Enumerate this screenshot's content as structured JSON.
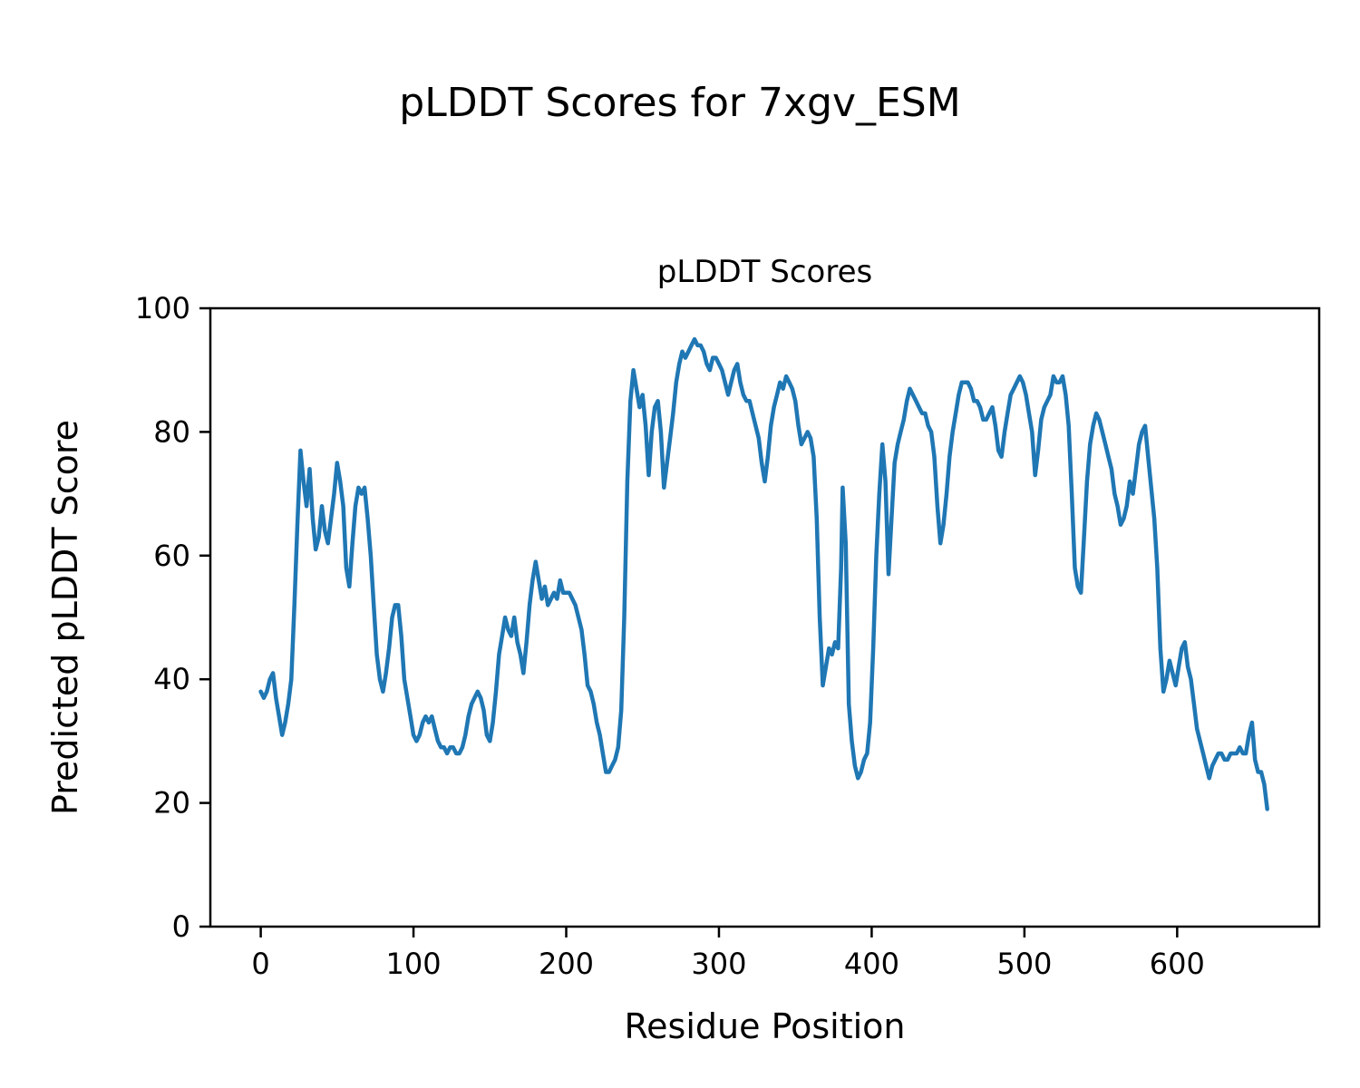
{
  "chart_data": {
    "type": "line",
    "figure_title": "pLDDT Scores for 7xgv_ESM",
    "title": "pLDDT Scores",
    "xlabel": "Residue Position",
    "ylabel": "Predicted pLDDT Score",
    "xlim": [
      -33,
      693
    ],
    "ylim": [
      0,
      100
    ],
    "xticks": [
      0,
      100,
      200,
      300,
      400,
      500,
      600
    ],
    "yticks": [
      0,
      20,
      40,
      60,
      80,
      100
    ],
    "grid": false,
    "legend": "none",
    "series": [
      {
        "name": "pLDDT",
        "color": "#1f77b4",
        "points": [
          [
            0,
            38
          ],
          [
            2,
            37
          ],
          [
            4,
            38
          ],
          [
            6,
            40
          ],
          [
            8,
            41
          ],
          [
            10,
            37
          ],
          [
            12,
            34
          ],
          [
            14,
            31
          ],
          [
            16,
            33
          ],
          [
            18,
            36
          ],
          [
            20,
            40
          ],
          [
            22,
            52
          ],
          [
            24,
            65
          ],
          [
            26,
            77
          ],
          [
            28,
            72
          ],
          [
            30,
            68
          ],
          [
            32,
            74
          ],
          [
            34,
            66
          ],
          [
            36,
            61
          ],
          [
            38,
            63
          ],
          [
            40,
            68
          ],
          [
            42,
            64
          ],
          [
            44,
            62
          ],
          [
            46,
            66
          ],
          [
            48,
            70
          ],
          [
            50,
            75
          ],
          [
            52,
            72
          ],
          [
            54,
            68
          ],
          [
            56,
            58
          ],
          [
            58,
            55
          ],
          [
            60,
            62
          ],
          [
            62,
            68
          ],
          [
            64,
            71
          ],
          [
            66,
            70
          ],
          [
            68,
            71
          ],
          [
            70,
            66
          ],
          [
            72,
            60
          ],
          [
            74,
            52
          ],
          [
            76,
            44
          ],
          [
            78,
            40
          ],
          [
            80,
            38
          ],
          [
            82,
            41
          ],
          [
            84,
            45
          ],
          [
            86,
            50
          ],
          [
            88,
            52
          ],
          [
            90,
            52
          ],
          [
            92,
            47
          ],
          [
            94,
            40
          ],
          [
            96,
            37
          ],
          [
            98,
            34
          ],
          [
            100,
            31
          ],
          [
            102,
            30
          ],
          [
            104,
            31
          ],
          [
            106,
            33
          ],
          [
            108,
            34
          ],
          [
            110,
            33
          ],
          [
            112,
            34
          ],
          [
            114,
            32
          ],
          [
            116,
            30
          ],
          [
            118,
            29
          ],
          [
            120,
            29
          ],
          [
            122,
            28
          ],
          [
            124,
            29
          ],
          [
            126,
            29
          ],
          [
            128,
            28
          ],
          [
            130,
            28
          ],
          [
            132,
            29
          ],
          [
            134,
            31
          ],
          [
            136,
            34
          ],
          [
            138,
            36
          ],
          [
            140,
            37
          ],
          [
            142,
            38
          ],
          [
            144,
            37
          ],
          [
            146,
            35
          ],
          [
            148,
            31
          ],
          [
            150,
            30
          ],
          [
            152,
            33
          ],
          [
            154,
            38
          ],
          [
            156,
            44
          ],
          [
            158,
            47
          ],
          [
            160,
            50
          ],
          [
            162,
            48
          ],
          [
            164,
            47
          ],
          [
            166,
            50
          ],
          [
            168,
            46
          ],
          [
            170,
            44
          ],
          [
            172,
            41
          ],
          [
            174,
            46
          ],
          [
            176,
            52
          ],
          [
            178,
            56
          ],
          [
            180,
            59
          ],
          [
            182,
            56
          ],
          [
            184,
            53
          ],
          [
            186,
            55
          ],
          [
            188,
            52
          ],
          [
            190,
            53
          ],
          [
            192,
            54
          ],
          [
            194,
            53
          ],
          [
            196,
            56
          ],
          [
            198,
            54
          ],
          [
            200,
            54
          ],
          [
            202,
            54
          ],
          [
            204,
            53
          ],
          [
            206,
            52
          ],
          [
            208,
            50
          ],
          [
            210,
            48
          ],
          [
            212,
            44
          ],
          [
            214,
            39
          ],
          [
            216,
            38
          ],
          [
            218,
            36
          ],
          [
            220,
            33
          ],
          [
            222,
            31
          ],
          [
            224,
            28
          ],
          [
            226,
            25
          ],
          [
            228,
            25
          ],
          [
            230,
            26
          ],
          [
            232,
            27
          ],
          [
            234,
            29
          ],
          [
            236,
            35
          ],
          [
            238,
            50
          ],
          [
            240,
            72
          ],
          [
            242,
            85
          ],
          [
            244,
            90
          ],
          [
            246,
            87
          ],
          [
            248,
            84
          ],
          [
            250,
            86
          ],
          [
            252,
            81
          ],
          [
            254,
            73
          ],
          [
            256,
            80
          ],
          [
            258,
            84
          ],
          [
            260,
            85
          ],
          [
            262,
            80
          ],
          [
            264,
            71
          ],
          [
            266,
            75
          ],
          [
            268,
            79
          ],
          [
            270,
            83
          ],
          [
            272,
            88
          ],
          [
            274,
            91
          ],
          [
            276,
            93
          ],
          [
            278,
            92
          ],
          [
            280,
            93
          ],
          [
            282,
            94
          ],
          [
            284,
            95
          ],
          [
            286,
            94
          ],
          [
            288,
            94
          ],
          [
            290,
            93
          ],
          [
            292,
            91
          ],
          [
            294,
            90
          ],
          [
            296,
            92
          ],
          [
            298,
            92
          ],
          [
            300,
            91
          ],
          [
            302,
            90
          ],
          [
            304,
            88
          ],
          [
            306,
            86
          ],
          [
            308,
            88
          ],
          [
            310,
            90
          ],
          [
            312,
            91
          ],
          [
            314,
            88
          ],
          [
            316,
            86
          ],
          [
            318,
            85
          ],
          [
            320,
            85
          ],
          [
            322,
            83
          ],
          [
            324,
            81
          ],
          [
            326,
            79
          ],
          [
            328,
            75
          ],
          [
            330,
            72
          ],
          [
            332,
            76
          ],
          [
            334,
            81
          ],
          [
            336,
            84
          ],
          [
            338,
            86
          ],
          [
            340,
            88
          ],
          [
            342,
            87
          ],
          [
            344,
            89
          ],
          [
            346,
            88
          ],
          [
            348,
            87
          ],
          [
            350,
            85
          ],
          [
            352,
            81
          ],
          [
            354,
            78
          ],
          [
            356,
            79
          ],
          [
            358,
            80
          ],
          [
            360,
            79
          ],
          [
            362,
            76
          ],
          [
            364,
            66
          ],
          [
            366,
            50
          ],
          [
            368,
            39
          ],
          [
            370,
            42
          ],
          [
            372,
            45
          ],
          [
            374,
            44
          ],
          [
            376,
            46
          ],
          [
            378,
            45
          ],
          [
            380,
            58
          ],
          [
            381,
            71
          ],
          [
            383,
            62
          ],
          [
            385,
            36
          ],
          [
            387,
            30
          ],
          [
            389,
            26
          ],
          [
            391,
            24
          ],
          [
            393,
            25
          ],
          [
            395,
            27
          ],
          [
            397,
            28
          ],
          [
            399,
            33
          ],
          [
            401,
            45
          ],
          [
            403,
            60
          ],
          [
            405,
            70
          ],
          [
            407,
            78
          ],
          [
            409,
            72
          ],
          [
            411,
            57
          ],
          [
            413,
            66
          ],
          [
            415,
            75
          ],
          [
            417,
            78
          ],
          [
            419,
            80
          ],
          [
            421,
            82
          ],
          [
            423,
            85
          ],
          [
            425,
            87
          ],
          [
            427,
            86
          ],
          [
            429,
            85
          ],
          [
            431,
            84
          ],
          [
            433,
            83
          ],
          [
            435,
            83
          ],
          [
            437,
            81
          ],
          [
            439,
            80
          ],
          [
            441,
            76
          ],
          [
            443,
            68
          ],
          [
            445,
            62
          ],
          [
            447,
            65
          ],
          [
            449,
            70
          ],
          [
            451,
            76
          ],
          [
            453,
            80
          ],
          [
            455,
            83
          ],
          [
            457,
            86
          ],
          [
            459,
            88
          ],
          [
            461,
            88
          ],
          [
            463,
            88
          ],
          [
            465,
            87
          ],
          [
            467,
            85
          ],
          [
            469,
            85
          ],
          [
            471,
            84
          ],
          [
            473,
            82
          ],
          [
            475,
            82
          ],
          [
            477,
            83
          ],
          [
            479,
            84
          ],
          [
            481,
            81
          ],
          [
            483,
            77
          ],
          [
            485,
            76
          ],
          [
            487,
            80
          ],
          [
            489,
            83
          ],
          [
            491,
            86
          ],
          [
            493,
            87
          ],
          [
            495,
            88
          ],
          [
            497,
            89
          ],
          [
            499,
            88
          ],
          [
            501,
            86
          ],
          [
            503,
            83
          ],
          [
            505,
            80
          ],
          [
            507,
            73
          ],
          [
            509,
            77
          ],
          [
            511,
            82
          ],
          [
            513,
            84
          ],
          [
            515,
            85
          ],
          [
            517,
            86
          ],
          [
            519,
            89
          ],
          [
            521,
            88
          ],
          [
            523,
            88
          ],
          [
            525,
            89
          ],
          [
            527,
            86
          ],
          [
            529,
            81
          ],
          [
            531,
            70
          ],
          [
            533,
            58
          ],
          [
            535,
            55
          ],
          [
            537,
            54
          ],
          [
            539,
            63
          ],
          [
            541,
            72
          ],
          [
            543,
            78
          ],
          [
            545,
            81
          ],
          [
            547,
            83
          ],
          [
            549,
            82
          ],
          [
            551,
            80
          ],
          [
            553,
            78
          ],
          [
            555,
            76
          ],
          [
            557,
            74
          ],
          [
            559,
            70
          ],
          [
            561,
            68
          ],
          [
            563,
            65
          ],
          [
            565,
            66
          ],
          [
            567,
            68
          ],
          [
            569,
            72
          ],
          [
            571,
            70
          ],
          [
            573,
            74
          ],
          [
            575,
            78
          ],
          [
            577,
            80
          ],
          [
            579,
            81
          ],
          [
            581,
            76
          ],
          [
            583,
            71
          ],
          [
            585,
            66
          ],
          [
            587,
            58
          ],
          [
            589,
            45
          ],
          [
            591,
            38
          ],
          [
            593,
            40
          ],
          [
            595,
            43
          ],
          [
            597,
            41
          ],
          [
            599,
            39
          ],
          [
            601,
            42
          ],
          [
            603,
            45
          ],
          [
            605,
            46
          ],
          [
            607,
            42
          ],
          [
            609,
            40
          ],
          [
            611,
            36
          ],
          [
            613,
            32
          ],
          [
            615,
            30
          ],
          [
            617,
            28
          ],
          [
            619,
            26
          ],
          [
            621,
            24
          ],
          [
            623,
            26
          ],
          [
            625,
            27
          ],
          [
            627,
            28
          ],
          [
            629,
            28
          ],
          [
            631,
            27
          ],
          [
            633,
            27
          ],
          [
            635,
            28
          ],
          [
            637,
            28
          ],
          [
            639,
            28
          ],
          [
            641,
            29
          ],
          [
            643,
            28
          ],
          [
            645,
            28
          ],
          [
            647,
            31
          ],
          [
            649,
            33
          ],
          [
            651,
            27
          ],
          [
            653,
            25
          ],
          [
            655,
            25
          ],
          [
            657,
            23
          ],
          [
            659,
            19
          ]
        ]
      }
    ]
  }
}
